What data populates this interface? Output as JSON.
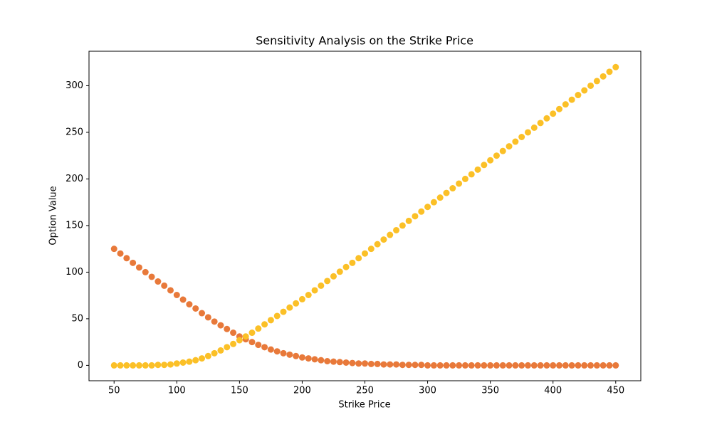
{
  "chart_data": {
    "type": "scatter",
    "title": "Sensitivity Analysis on the Strike Price",
    "x_label": "Strike Price",
    "y_label": "Option Value",
    "x": [
      50,
      55,
      60,
      65,
      70,
      75,
      80,
      85,
      90,
      95,
      100,
      105,
      110,
      115,
      120,
      125,
      130,
      135,
      140,
      145,
      150,
      155,
      160,
      165,
      170,
      175,
      180,
      185,
      190,
      195,
      200,
      205,
      210,
      215,
      220,
      225,
      230,
      235,
      240,
      245,
      250,
      255,
      260,
      265,
      270,
      275,
      280,
      285,
      290,
      295,
      300,
      305,
      310,
      315,
      320,
      325,
      330,
      335,
      340,
      345,
      350,
      355,
      360,
      365,
      370,
      375,
      380,
      385,
      390,
      395,
      400,
      405,
      410,
      415,
      420,
      425,
      430,
      435,
      440,
      445,
      450
    ],
    "series": [
      {
        "color": "#e8793a",
        "values": [
          125,
          120,
          115,
          110,
          105,
          100,
          95,
          90,
          85.5,
          80.5,
          75.5,
          70.5,
          65.5,
          61,
          56,
          51.5,
          47,
          43,
          39,
          35,
          31,
          28,
          25,
          22,
          19.5,
          17,
          15,
          13,
          11.5,
          10,
          8.5,
          7.5,
          6.5,
          5.5,
          4.5,
          4,
          3.5,
          3,
          2.5,
          2,
          2,
          1.5,
          1.5,
          1,
          1,
          1,
          0.5,
          0.5,
          0.5,
          0.5,
          0,
          0,
          0,
          0,
          0,
          0,
          0,
          0,
          0,
          0,
          0,
          0,
          0,
          0,
          0,
          0,
          0,
          0,
          0,
          0,
          0,
          0,
          0,
          0,
          0,
          0,
          0,
          0,
          0,
          0,
          0
        ]
      },
      {
        "color": "#fbc027",
        "values": [
          0,
          0,
          0,
          0,
          0,
          0,
          0,
          0.5,
          0.5,
          1,
          2,
          3,
          4,
          5.5,
          7.5,
          10,
          13,
          16,
          19.5,
          23,
          27,
          31,
          35,
          39.5,
          44,
          48.5,
          53,
          57.5,
          62,
          66.5,
          71,
          75.5,
          80.5,
          85.5,
          90.5,
          95.5,
          100.5,
          105.5,
          110,
          115,
          120,
          125,
          130,
          135,
          140,
          145,
          150,
          155,
          160,
          165,
          170,
          175,
          180,
          185,
          190,
          195,
          200,
          205,
          210,
          215,
          220,
          225,
          230,
          235,
          240,
          245,
          250,
          255,
          260,
          265,
          270,
          275,
          280,
          285,
          290,
          295,
          300,
          305,
          310,
          315,
          320
        ]
      }
    ],
    "xlim": [
      30,
      470
    ],
    "xticks": [
      50,
      100,
      150,
      200,
      250,
      300,
      350,
      400,
      450
    ],
    "ylim": [
      -16.5,
      337
    ],
    "yticks": [
      0,
      50,
      100,
      150,
      200,
      250,
      300
    ]
  }
}
